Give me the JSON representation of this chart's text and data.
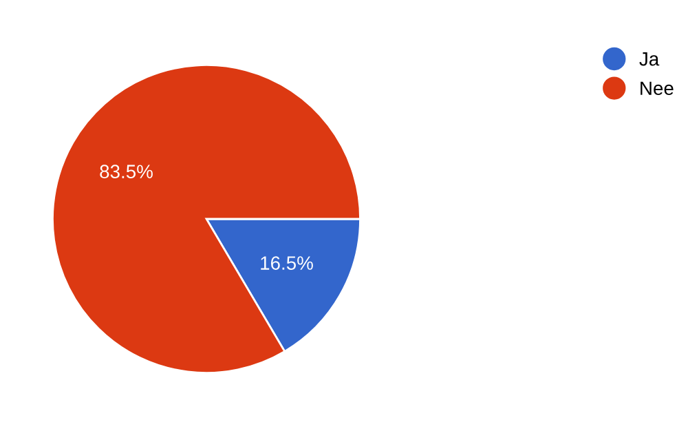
{
  "chart_data": {
    "type": "pie",
    "categories": [
      "Ja",
      "Nee"
    ],
    "values": [
      16.5,
      83.5
    ],
    "colors": [
      "#3366cc",
      "#dc3912"
    ],
    "value_labels": [
      "16.5%",
      "83.5%"
    ],
    "legend": "top right"
  }
}
